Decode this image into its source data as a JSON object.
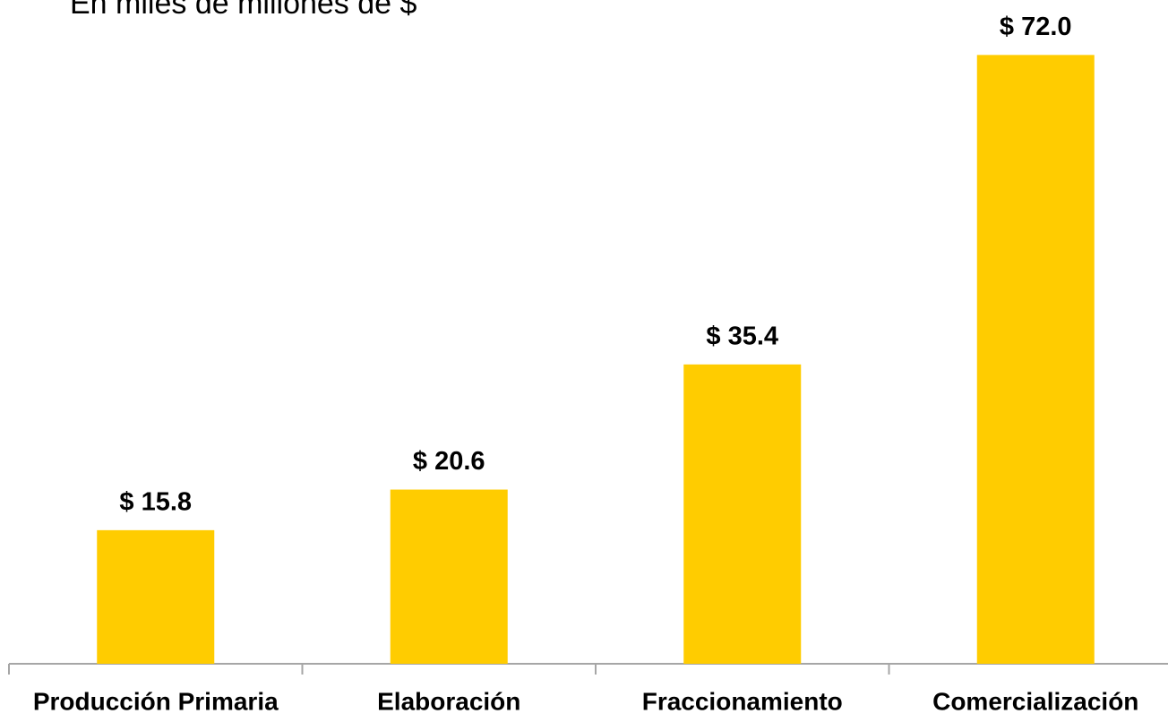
{
  "chart_data": {
    "type": "bar",
    "subtitle": "En miles de millones de $",
    "categories": [
      "Producción Primaria",
      "Elaboración",
      "Fraccionamiento",
      "Comercialización"
    ],
    "values": [
      15.8,
      20.6,
      35.4,
      72.0
    ],
    "value_labels": [
      "$ 15.8",
      "$ 20.6",
      "$ 35.4",
      "$ 72.0"
    ],
    "color": "#ffcc00",
    "ylim": [
      0,
      78.5
    ]
  }
}
